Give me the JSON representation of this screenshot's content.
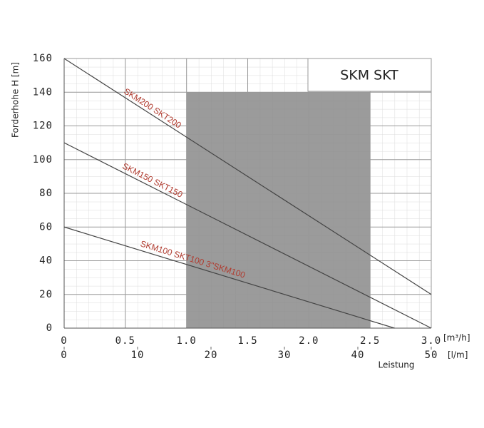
{
  "chart_data": {
    "type": "line",
    "title": "SKM SKT",
    "y_label": "Forderhohe  H [m]",
    "x_unit_label": "[m³/h]",
    "x2_unit_label": "[l/m]",
    "x2_label": "Leistung",
    "xlim": [
      0,
      3.0
    ],
    "xticks": [
      0,
      0.5,
      {
        "value": 1,
        "label": "1.0"
      },
      1.5,
      {
        "value": 2,
        "label": "2.0"
      },
      2.5,
      {
        "value": 3,
        "label": "3.0"
      }
    ],
    "x2lim": [
      0,
      50
    ],
    "x2ticks": [
      0,
      10,
      20,
      30,
      40,
      50
    ],
    "ylim": [
      0,
      160
    ],
    "yticks": [
      0,
      20,
      40,
      60,
      80,
      100,
      120,
      140,
      160
    ],
    "grid": true,
    "highlight": {
      "xlim": [
        1.0,
        2.5
      ],
      "ylim": [
        0,
        140
      ],
      "color": "#8a8a8a"
    },
    "series": [
      {
        "name": "SKM200 SKT200",
        "color": "#444444",
        "x": [
          0,
          3.0
        ],
        "values": [
          160,
          20
        ]
      },
      {
        "name": "SKM150 SKT150",
        "color": "#444444",
        "x": [
          0,
          3.0
        ],
        "values": [
          110,
          0
        ]
      },
      {
        "name": "SKM100 SKT100   3\"SKM100",
        "color": "#444444",
        "x": [
          0,
          2.7
        ],
        "values": [
          60,
          0
        ]
      }
    ]
  }
}
